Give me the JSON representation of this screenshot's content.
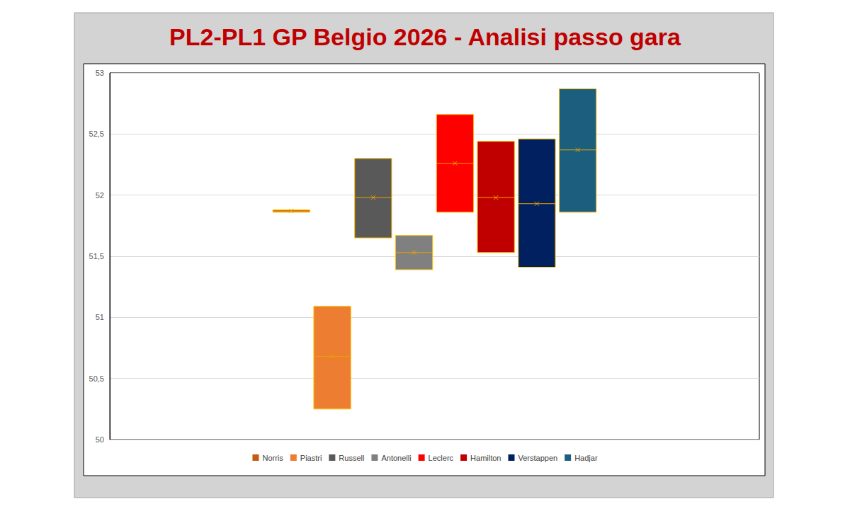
{
  "chart_data": {
    "type": "floating_bar",
    "title": "PL2-PL1 GP Belgio 2026 - Analisi passo gara",
    "categories": [
      null
    ],
    "series": [
      {
        "name": "Norris",
        "color": "#c55a11",
        "low": [
          51.86
        ],
        "high": [
          51.88
        ],
        "values": [
          51.87
        ]
      },
      {
        "name": "Piastri",
        "color": "#ed7d31",
        "low": [
          50.25
        ],
        "high": [
          51.09
        ],
        "values": [
          50.68
        ]
      },
      {
        "name": "Russell",
        "color": "#595959",
        "low": [
          51.65
        ],
        "high": [
          52.3
        ],
        "values": [
          51.98
        ]
      },
      {
        "name": "Antonelli",
        "color": "#808080",
        "low": [
          51.39
        ],
        "high": [
          51.67
        ],
        "values": [
          51.53
        ]
      },
      {
        "name": "Leclerc",
        "color": "#ff0000",
        "low": [
          51.86
        ],
        "high": [
          52.66
        ],
        "values": [
          52.26
        ]
      },
      {
        "name": "Hamilton",
        "color": "#c00000",
        "low": [
          51.53
        ],
        "high": [
          52.44
        ],
        "values": [
          51.98
        ]
      },
      {
        "name": "Verstappen",
        "color": "#002060",
        "low": [
          51.41
        ],
        "high": [
          52.46
        ],
        "values": [
          51.93
        ]
      },
      {
        "name": "Hadjar",
        "color": "#1b5e7e",
        "low": [
          51.86
        ],
        "high": [
          52.87
        ],
        "values": [
          52.37
        ]
      }
    ],
    "ylim": [
      50,
      53
    ],
    "yticks": [
      50,
      {
        "value": 50.5,
        "label": "50,5"
      },
      51,
      {
        "value": 51.5,
        "label": "51,5"
      },
      52,
      {
        "value": 52.5,
        "label": "52,5"
      },
      53
    ],
    "grid": true,
    "legend": "bottom",
    "marker": "x",
    "tick_labels": "y"
  }
}
